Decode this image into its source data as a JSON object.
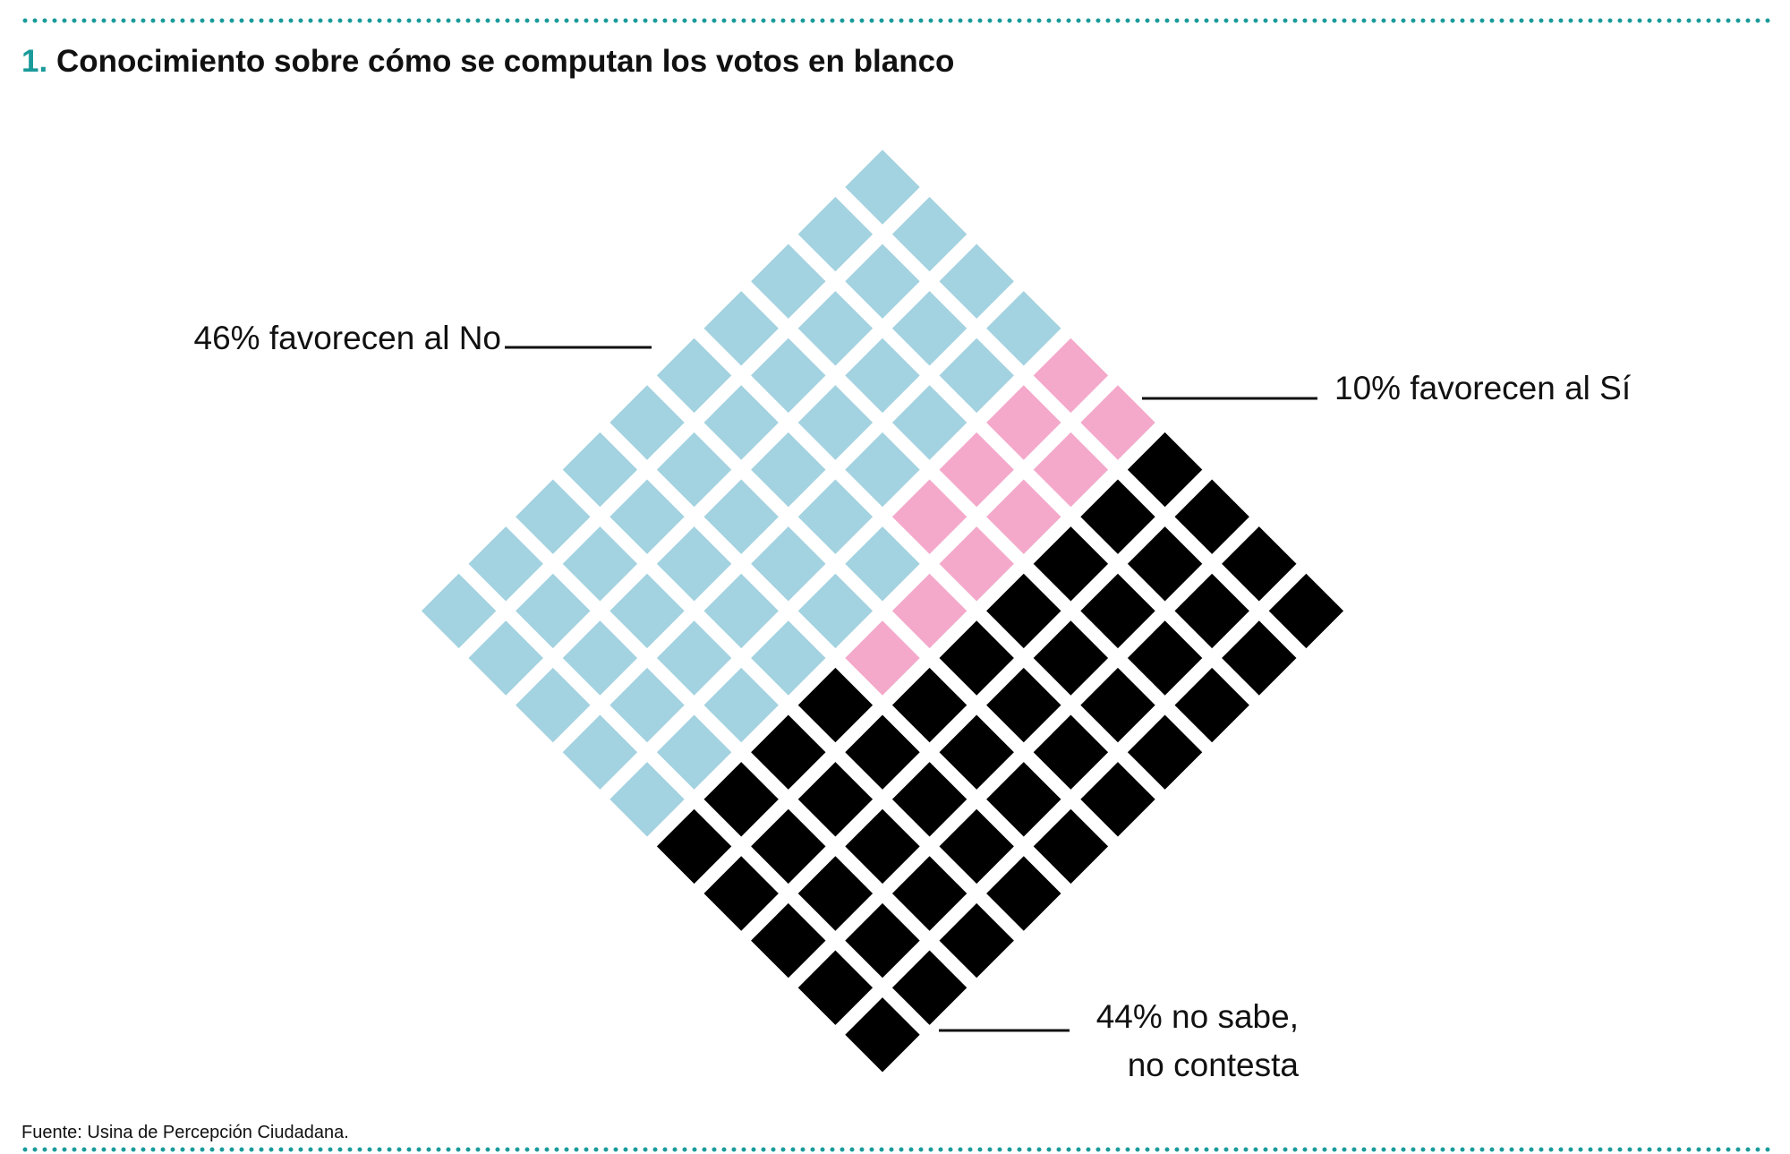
{
  "chart_data": {
    "type": "waffle",
    "number": "1.",
    "title": "Conocimiento sobre cómo se computan los votos en blanco",
    "values": [
      46,
      10,
      44
    ],
    "value_labels": [
      [
        "46% favorecen al No"
      ],
      [
        "10% favorecen al Sí"
      ],
      [
        "44% no sabe,",
        "no contesta"
      ]
    ],
    "colors": [
      "#a3d2e0",
      "#f4a9cb",
      "#000000"
    ],
    "source": "Fuente: Usina de Percepción Ciudadana."
  }
}
